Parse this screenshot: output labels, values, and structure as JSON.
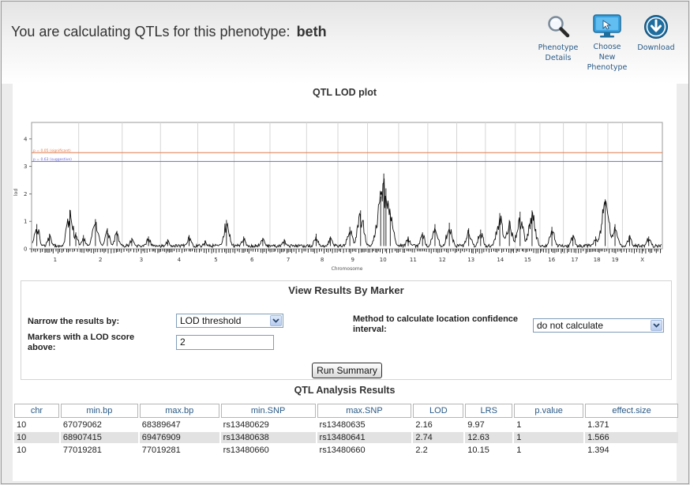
{
  "header": {
    "title_prefix": "You are calculating QTLs for this phenotype:",
    "phenotype": "beth",
    "buttons": [
      {
        "label": "Phenotype Details",
        "icon": "magnifier-icon"
      },
      {
        "label": "Choose New Phenotype",
        "icon": "monitor-pointer-icon"
      },
      {
        "label": "Download",
        "icon": "download-icon"
      }
    ]
  },
  "plot": {
    "title": "QTL LOD plot"
  },
  "chart_data": {
    "type": "line",
    "xlabel": "Chromosome",
    "ylabel": "lod",
    "ylim": [
      0,
      4.6
    ],
    "yticks": [
      0,
      1,
      2,
      3,
      4
    ],
    "grid": true,
    "chromosomes": [
      "1",
      "2",
      "3",
      "4",
      "5",
      "6",
      "7",
      "8",
      "9",
      "10",
      "11",
      "12",
      "13",
      "14",
      "15",
      "16",
      "17",
      "18",
      "19",
      "X"
    ],
    "chromosome_lengths_mb": [
      197,
      182,
      160,
      156,
      152,
      150,
      153,
      131,
      124,
      130,
      122,
      121,
      120,
      125,
      103,
      98,
      95,
      91,
      61,
      167
    ],
    "thresholds": [
      {
        "label": "p = 0.05 (significant)",
        "value": 3.5,
        "color": "#e07b4a"
      },
      {
        "label": "p = 0.63 (suggestive)",
        "value": 3.18,
        "color": "#6b6bd6"
      }
    ],
    "series": [
      {
        "color": "#111111",
        "peaks": [
          {
            "chr": "1",
            "mb": 22,
            "lod": 0.9
          },
          {
            "chr": "1",
            "mb": 75,
            "lod": 0.55
          },
          {
            "chr": "1",
            "mb": 160,
            "lod": 1.42
          },
          {
            "chr": "1",
            "mb": 185,
            "lod": 0.6
          },
          {
            "chr": "2",
            "mb": 20,
            "lod": 0.5
          },
          {
            "chr": "2",
            "mb": 70,
            "lod": 1.08
          },
          {
            "chr": "2",
            "mb": 120,
            "lod": 0.75
          },
          {
            "chr": "2",
            "mb": 160,
            "lod": 0.65
          },
          {
            "chr": "3",
            "mb": 40,
            "lod": 0.4
          },
          {
            "chr": "3",
            "mb": 110,
            "lod": 0.45
          },
          {
            "chr": "4",
            "mb": 30,
            "lod": 0.35
          },
          {
            "chr": "4",
            "mb": 120,
            "lod": 0.5
          },
          {
            "chr": "5",
            "mb": 30,
            "lod": 0.3
          },
          {
            "chr": "5",
            "mb": 120,
            "lod": 1.05
          },
          {
            "chr": "6",
            "mb": 40,
            "lod": 0.45
          },
          {
            "chr": "6",
            "mb": 120,
            "lod": 0.4
          },
          {
            "chr": "7",
            "mb": 60,
            "lod": 0.35
          },
          {
            "chr": "8",
            "mb": 40,
            "lod": 0.55
          },
          {
            "chr": "8",
            "mb": 100,
            "lod": 0.45
          },
          {
            "chr": "9",
            "mb": 50,
            "lod": 0.8
          },
          {
            "chr": "9",
            "mb": 95,
            "lod": 1.4
          },
          {
            "chr": "10",
            "mb": 55,
            "lod": 1.9
          },
          {
            "chr": "10",
            "mb": 68,
            "lod": 2.74
          },
          {
            "chr": "10",
            "mb": 77,
            "lod": 2.2
          },
          {
            "chr": "10",
            "mb": 95,
            "lod": 1.3
          },
          {
            "chr": "11",
            "mb": 40,
            "lod": 0.45
          },
          {
            "chr": "11",
            "mb": 100,
            "lod": 0.6
          },
          {
            "chr": "12",
            "mb": 30,
            "lod": 0.9
          },
          {
            "chr": "12",
            "mb": 90,
            "lod": 0.95
          },
          {
            "chr": "13",
            "mb": 50,
            "lod": 0.75
          },
          {
            "chr": "13",
            "mb": 100,
            "lod": 0.7
          },
          {
            "chr": "14",
            "mb": 60,
            "lod": 1.3
          },
          {
            "chr": "14",
            "mb": 100,
            "lod": 1.05
          },
          {
            "chr": "15",
            "mb": 20,
            "lod": 1.35
          },
          {
            "chr": "15",
            "mb": 70,
            "lod": 1.4
          },
          {
            "chr": "16",
            "mb": 50,
            "lod": 0.8
          },
          {
            "chr": "17",
            "mb": 40,
            "lod": 0.5
          },
          {
            "chr": "18",
            "mb": 40,
            "lod": 0.45
          },
          {
            "chr": "18",
            "mb": 80,
            "lod": 1.8
          },
          {
            "chr": "19",
            "mb": 30,
            "lod": 0.9
          },
          {
            "chr": "X",
            "mb": 30,
            "lod": 0.5
          },
          {
            "chr": "X",
            "mb": 110,
            "lod": 0.45
          }
        ]
      }
    ]
  },
  "view_results": {
    "title": "View Results By Marker",
    "narrow_label": "Narrow the results by:",
    "narrow_value": "LOD threshold",
    "lod_label": "Markers with a LOD score above:",
    "lod_value": "2",
    "method_label": "Method to calculate location confidence interval:",
    "method_value": "do not calculate",
    "run_button": "Run Summary"
  },
  "results": {
    "title": "QTL Analysis Results",
    "columns": [
      "chr",
      "min.bp",
      "max.bp",
      "min.SNP",
      "max.SNP",
      "LOD",
      "LRS",
      "p.value",
      "effect.size"
    ],
    "rows": [
      [
        "10",
        "67079062",
        "68389647",
        "rs13480629",
        "rs13480635",
        "2.16",
        "9.97",
        "1",
        "1.371"
      ],
      [
        "10",
        "68907415",
        "69476909",
        "rs13480638",
        "rs13480641",
        "2.74",
        "12.63",
        "1",
        "1.566"
      ],
      [
        "10",
        "77019281",
        "77019281",
        "rs13480660",
        "rs13480660",
        "2.2",
        "10.15",
        "1",
        "1.394"
      ]
    ]
  }
}
